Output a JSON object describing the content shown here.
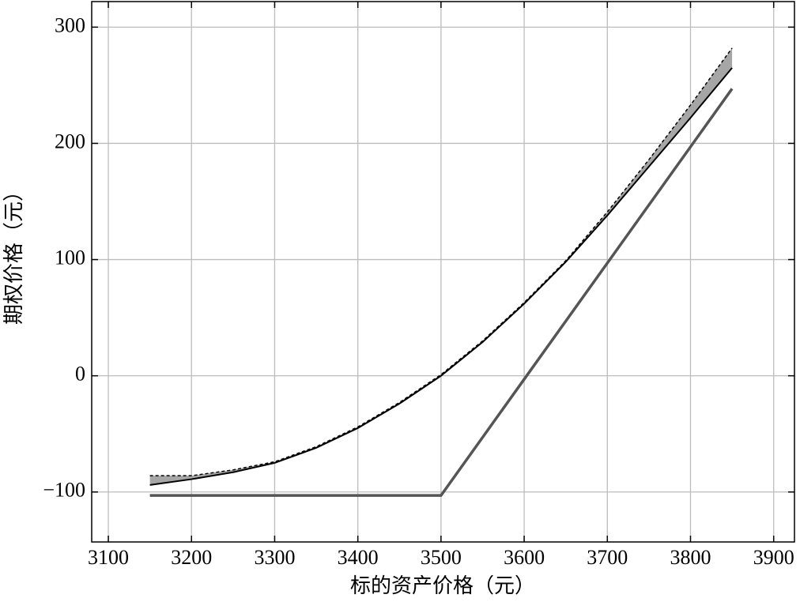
{
  "chart_data": {
    "type": "line",
    "xlabel": "标的资产价格（元）",
    "ylabel": "期权价格（元）",
    "x": [
      3150,
      3200,
      3250,
      3300,
      3350,
      3400,
      3450,
      3500,
      3550,
      3600,
      3650,
      3700,
      3750,
      3800,
      3850
    ],
    "series": [
      {
        "color": "#000000",
        "style": "solid",
        "width": 2,
        "values": [
          -94,
          -89,
          -83,
          -75,
          -62,
          -45,
          -24,
          0,
          29,
          62,
          98,
          138,
          180,
          222,
          265
        ]
      },
      {
        "color": "#000000",
        "style": "dashed",
        "width": 1.5,
        "values": [
          -86,
          -86,
          -81,
          -74,
          -61,
          -44,
          -23,
          1,
          30,
          63,
          99,
          141,
          186,
          233,
          282
        ]
      },
      {
        "color": "#555555",
        "style": "solid",
        "width": 3.5,
        "values": [
          -103,
          -103,
          -103,
          -103,
          -103,
          -103,
          -103,
          -103,
          -53,
          -3,
          47,
          97,
          147,
          197,
          247
        ]
      }
    ],
    "fill_between": {
      "series": [
        0,
        1
      ],
      "color": "#a6a6a6"
    },
    "xlim": [
      3080,
      3925
    ],
    "ylim": [
      -143,
      322
    ],
    "xticks": [
      3100,
      3200,
      3300,
      3400,
      3500,
      3600,
      3700,
      3800,
      3900
    ],
    "yticks": [
      {
        "value": -100,
        "label": "−100"
      },
      0,
      100,
      200,
      300
    ],
    "grid": true
  }
}
